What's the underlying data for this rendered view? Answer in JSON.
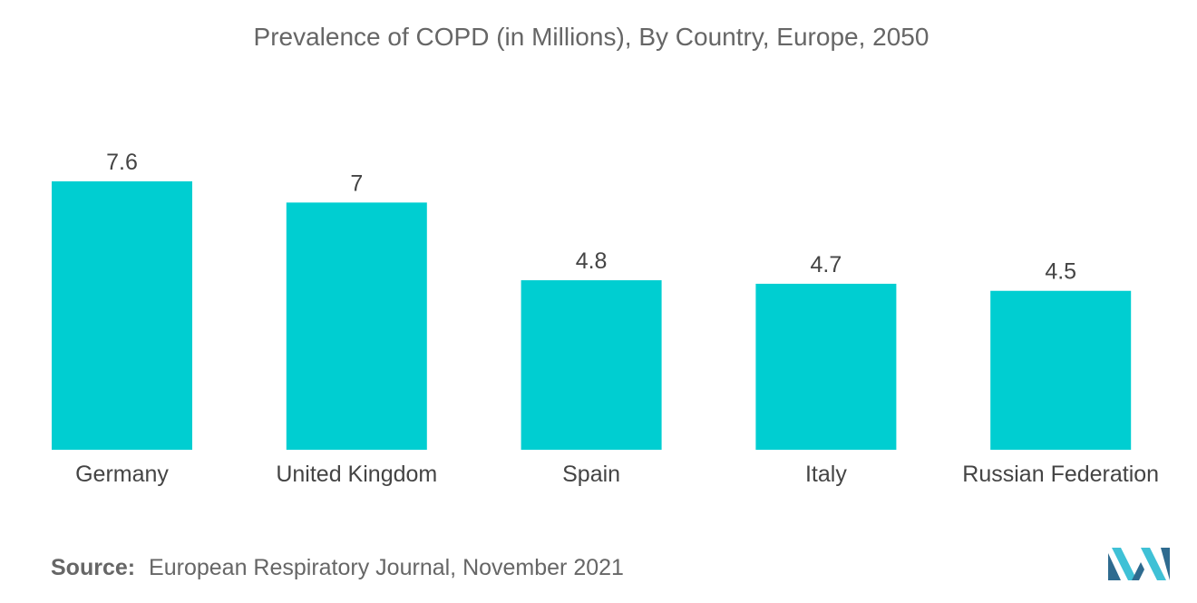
{
  "chart_data": {
    "type": "bar",
    "title": "Prevalence of COPD (in Millions), By Country, Europe, 2050",
    "categories": [
      "Germany",
      "United Kingdom",
      "Spain",
      "Italy",
      "Russian Federation"
    ],
    "values": [
      7.6,
      7,
      4.8,
      4.7,
      4.5
    ],
    "value_labels": [
      "7.6",
      "7",
      "4.8",
      "4.7",
      "4.5"
    ],
    "xlabel": "",
    "ylabel": "",
    "ylim": [
      0,
      7.6
    ],
    "grid": false,
    "legend": "none",
    "bar_color": "#00CED1"
  },
  "source": {
    "label": "Source:",
    "text": "European Respiratory Journal, November 2021"
  },
  "logo": {
    "icon": "mordor-intelligence-logo-icon",
    "color_dark": "#2E6B8F",
    "color_light": "#3FC1D6"
  }
}
